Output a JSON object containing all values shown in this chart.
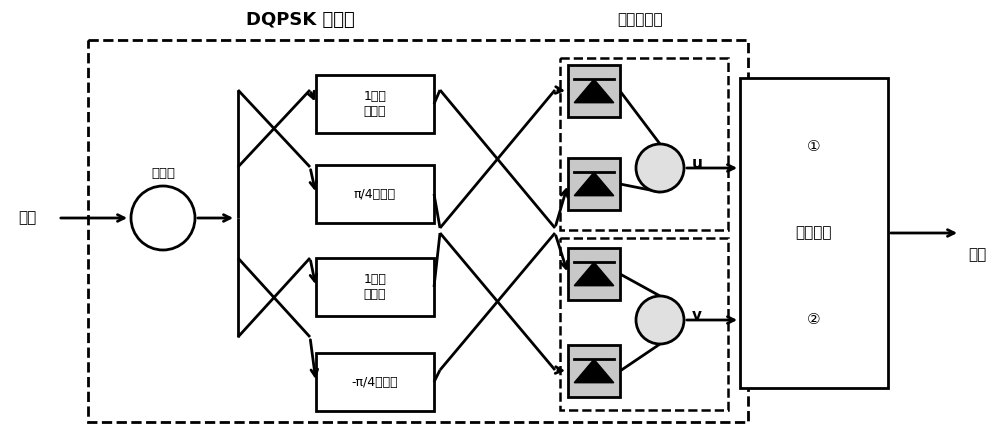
{
  "title_dqpsk": "DQPSK 解调器",
  "title_balanced": "平衡探测器",
  "label_signal_in": "信号",
  "label_coupler": "耦合器",
  "label_delay1": "1比特\n时延线",
  "label_phase1": "π/4相移器",
  "label_delay2": "1比特\n时延线",
  "label_phase2": "-π/4相移器",
  "label_u": "u",
  "label_v": "v",
  "label_decision": "判决电路",
  "label_circle1": "①",
  "label_circle2": "②",
  "label_data": "数据",
  "bg_color": "#ffffff"
}
